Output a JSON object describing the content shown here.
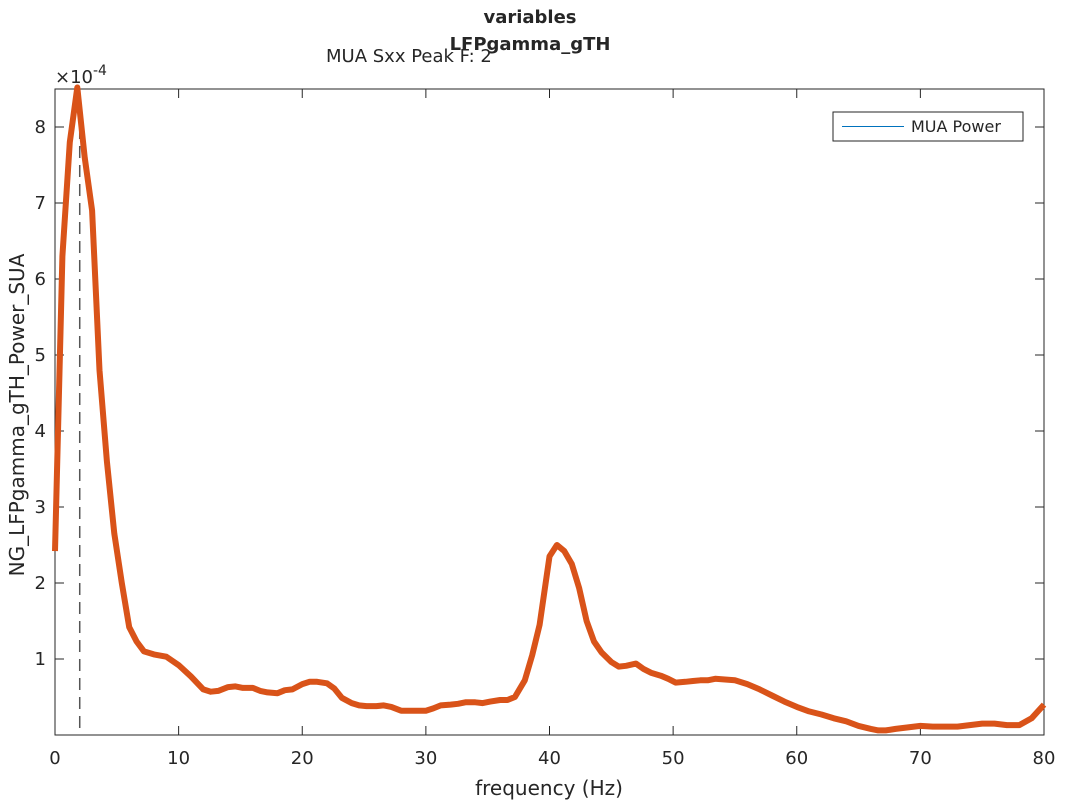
{
  "chart_data": {
    "type": "line",
    "title_lines": [
      "variables",
      "LFPgamma_gTH"
    ],
    "subtitle": "MUA Sxx Peak F: 2",
    "xlabel": "frequency (Hz)",
    "ylabel": "NG_LFPgamma_gTH_Power_SUA",
    "y_exponent_label": "×10",
    "y_exponent_power": "-4",
    "xlim": [
      0,
      80
    ],
    "ylim": [
      0,
      0.00085
    ],
    "x_ticks": [
      0,
      10,
      20,
      30,
      40,
      50,
      60,
      70,
      80
    ],
    "x_tick_labels": [
      "0",
      "10",
      "20",
      "30",
      "40",
      "50",
      "60",
      "70",
      "80"
    ],
    "y_ticks": [
      0.0001,
      0.0002,
      0.0003,
      0.0004,
      0.0005,
      0.0006,
      0.0007,
      0.0008
    ],
    "y_tick_labels": [
      "1",
      "2",
      "3",
      "4",
      "5",
      "6",
      "7",
      "8"
    ],
    "peak_line_x": 2,
    "legend": {
      "placement": "top-right",
      "entries": [
        "MUA Power"
      ],
      "line_color": "#0072BD"
    },
    "series": [
      {
        "color": "#D95319",
        "x": [
          0,
          0.6,
          1.2,
          1.8,
          2.4,
          3.0,
          3.6,
          4.2,
          4.8,
          5.4,
          6.0,
          6.6,
          7.2,
          8.0,
          9.0,
          10.0,
          11.0,
          12.0,
          12.6,
          13.2,
          14.0,
          14.6,
          15.2,
          16.0,
          16.6,
          17.2,
          18.0,
          18.6,
          19.2,
          20.0,
          20.6,
          21.2,
          22.0,
          22.6,
          23.2,
          24.0,
          24.6,
          25.2,
          26.0,
          26.6,
          27.2,
          28.0,
          28.6,
          29.2,
          30.0,
          30.6,
          31.2,
          32.0,
          32.6,
          33.2,
          34.0,
          34.6,
          35.2,
          36.0,
          36.6,
          37.2,
          38.0,
          38.6,
          39.2,
          40.0,
          40.6,
          41.2,
          41.8,
          42.4,
          43.0,
          43.6,
          44.2,
          45.0,
          45.6,
          46.2,
          47.0,
          47.6,
          48.2,
          49.0,
          49.6,
          50.2,
          51.0,
          51.6,
          52.2,
          52.8,
          53.4,
          54.2,
          55.0,
          56.0,
          57.0,
          58.0,
          59.0,
          60.0,
          61.0,
          62.0,
          63.0,
          64.0,
          65.0,
          66.0,
          66.6,
          67.2,
          68.0,
          69.0,
          70.0,
          71.0,
          72.0,
          73.0,
          74.0,
          75.0,
          76.0,
          77.0,
          78.0,
          79.0,
          80.0
        ],
        "y": [
          0.000242,
          0.00063,
          0.00078,
          0.000852,
          0.00076,
          0.00069,
          0.00048,
          0.00036,
          0.000265,
          0.0002,
          0.000142,
          0.000123,
          0.00011,
          0.000106,
          0.000103,
          9.2e-05,
          7.7e-05,
          6e-05,
          5.7e-05,
          5.8e-05,
          6.3e-05,
          6.4e-05,
          6.2e-05,
          6.2e-05,
          5.8e-05,
          5.6e-05,
          5.5e-05,
          5.9e-05,
          6e-05,
          6.7e-05,
          7e-05,
          7e-05,
          6.8e-05,
          6.1e-05,
          4.9e-05,
          4.2e-05,
          3.9e-05,
          3.8e-05,
          3.8e-05,
          3.9e-05,
          3.7e-05,
          3.2e-05,
          3.2e-05,
          3.2e-05,
          3.2e-05,
          3.5e-05,
          3.9e-05,
          4e-05,
          4.1e-05,
          4.3e-05,
          4.3e-05,
          4.2e-05,
          4.4e-05,
          4.6e-05,
          4.6e-05,
          5e-05,
          7.2e-05,
          0.000105,
          0.000145,
          0.000235,
          0.00025,
          0.000242,
          0.000225,
          0.000193,
          0.00015,
          0.000123,
          0.000109,
          9.6e-05,
          9e-05,
          9.1e-05,
          9.4e-05,
          8.7e-05,
          8.2e-05,
          7.8e-05,
          7.4e-05,
          6.9e-05,
          7e-05,
          7.1e-05,
          7.2e-05,
          7.2e-05,
          7.4e-05,
          7.3e-05,
          7.2e-05,
          6.7e-05,
          6e-05,
          5.2e-05,
          4.4e-05,
          3.7e-05,
          3.1e-05,
          2.7e-05,
          2.2e-05,
          1.8e-05,
          1.2e-05,
          8e-06,
          6e-06,
          6e-06,
          8e-06,
          1e-05,
          1.2e-05,
          1.1e-05,
          1.1e-05,
          1.1e-05,
          1.3e-05,
          1.5e-05,
          1.5e-05,
          1.3e-05,
          1.3e-05,
          2.2e-05,
          4e-05
        ]
      }
    ]
  }
}
